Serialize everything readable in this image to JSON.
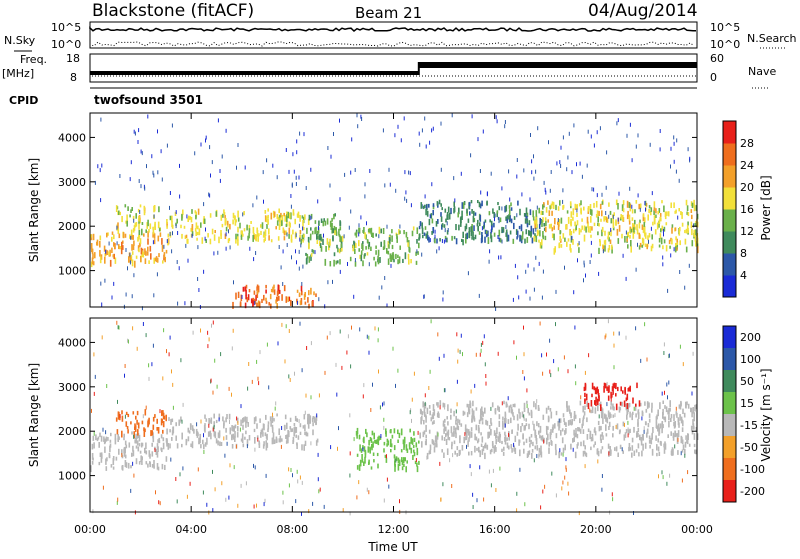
{
  "header": {
    "station": "Blackstone (fitACF)",
    "beam": "Beam 21",
    "date": "04/Aug/2014"
  },
  "noise_panel": {
    "left_label": "N.Sky",
    "right_label": "N.Search",
    "left_ticks": [
      "10^5",
      "10^0"
    ],
    "right_ticks": [
      "10^5",
      "10^0"
    ]
  },
  "freq_panel": {
    "left_label_top": "Freq.",
    "left_label_unit": "[MHz]",
    "right_label": "Nave",
    "left_ticks": [
      "18",
      "8"
    ],
    "right_ticks": [
      "60",
      "0"
    ],
    "switch_time_hours": 13.0
  },
  "cpid": {
    "label": "CPID",
    "value": "twofsound 3501"
  },
  "colors": {
    "power_scale": [
      "#1a2bd6",
      "#2c58a8",
      "#3f8a5c",
      "#6ab04a",
      "#f2e03a",
      "#f3a02a",
      "#ef6e1e",
      "#e8201a"
    ],
    "velocity_scale": [
      "#1a2bd6",
      "#2c58a8",
      "#3f8a5c",
      "#6cc24a",
      "#b8b8b8",
      "#f3a02a",
      "#ef6e1e",
      "#e8201a"
    ],
    "scatter_gray": "#c0c0c0"
  },
  "chart_data": [
    {
      "type": "heatmap",
      "title": "",
      "xlabel": "Time UT",
      "ylabel": "Slant Range [km]",
      "x_ticks": [
        "00:00",
        "04:00",
        "08:00",
        "12:00",
        "16:00",
        "20:00",
        "00:00"
      ],
      "x_range_hours": [
        0,
        24
      ],
      "y_ticks": [
        1000,
        2000,
        3000,
        4000
      ],
      "ylim": [
        180,
        4550
      ],
      "colorbar": {
        "label": "Power [dB]",
        "ticks": [
          4,
          8,
          12,
          16,
          20,
          24,
          28
        ],
        "range": [
          0,
          32
        ]
      },
      "bands": [
        {
          "start_h": 0.0,
          "end_h": 3.0,
          "range_start_km": 1200,
          "range_end_km": 1900,
          "typical_db": 20
        },
        {
          "start_h": 1.0,
          "end_h": 2.8,
          "range_start_km": 1900,
          "range_end_km": 2500,
          "typical_db": 18
        },
        {
          "start_h": 3.0,
          "end_h": 8.5,
          "range_start_km": 1700,
          "range_end_km": 2400,
          "typical_db": 16
        },
        {
          "start_h": 8.5,
          "end_h": 10.0,
          "range_start_km": 1200,
          "range_end_km": 2300,
          "typical_db": 12
        },
        {
          "start_h": 10.2,
          "end_h": 13.0,
          "range_start_km": 1200,
          "range_end_km": 2000,
          "typical_db": 14
        },
        {
          "start_h": 13.0,
          "end_h": 18.0,
          "range_start_km": 1700,
          "range_end_km": 2600,
          "typical_db": 8
        },
        {
          "start_h": 17.5,
          "end_h": 24.0,
          "range_start_km": 1500,
          "range_end_km": 2600,
          "typical_db": 16
        },
        {
          "start_h": 5.5,
          "end_h": 9.0,
          "range_start_km": 250,
          "range_end_km": 700,
          "typical_db": 24
        }
      ]
    },
    {
      "type": "heatmap",
      "title": "",
      "xlabel": "Time UT",
      "ylabel": "Slant Range [km]",
      "x_ticks": [
        "00:00",
        "04:00",
        "08:00",
        "12:00",
        "16:00",
        "20:00",
        "00:00"
      ],
      "x_range_hours": [
        0,
        24
      ],
      "y_ticks": [
        1000,
        2000,
        3000,
        4000
      ],
      "ylim": [
        180,
        4550
      ],
      "colorbar": {
        "label": "Velocity [m s⁻¹]",
        "ticks": [
          200,
          100,
          50,
          15,
          -15,
          -50,
          -100,
          -200
        ]
      },
      "bands": [
        {
          "start_h": 0.0,
          "end_h": 3.0,
          "range_start_km": 1200,
          "range_end_km": 2000,
          "typical_ms": 0
        },
        {
          "start_h": 3.0,
          "end_h": 9.0,
          "range_start_km": 1700,
          "range_end_km": 2400,
          "typical_ms": 0
        },
        {
          "start_h": 10.5,
          "end_h": 13.0,
          "range_start_km": 1200,
          "range_end_km": 2100,
          "typical_ms": 30
        },
        {
          "start_h": 13.0,
          "end_h": 24.0,
          "range_start_km": 1500,
          "range_end_km": 2700,
          "typical_ms": 0
        },
        {
          "start_h": 1.0,
          "end_h": 3.0,
          "range_start_km": 2000,
          "range_end_km": 2500,
          "typical_ms": -60
        },
        {
          "start_h": 19.5,
          "end_h": 21.8,
          "range_start_km": 2600,
          "range_end_km": 3100,
          "typical_ms": -150
        }
      ]
    }
  ]
}
